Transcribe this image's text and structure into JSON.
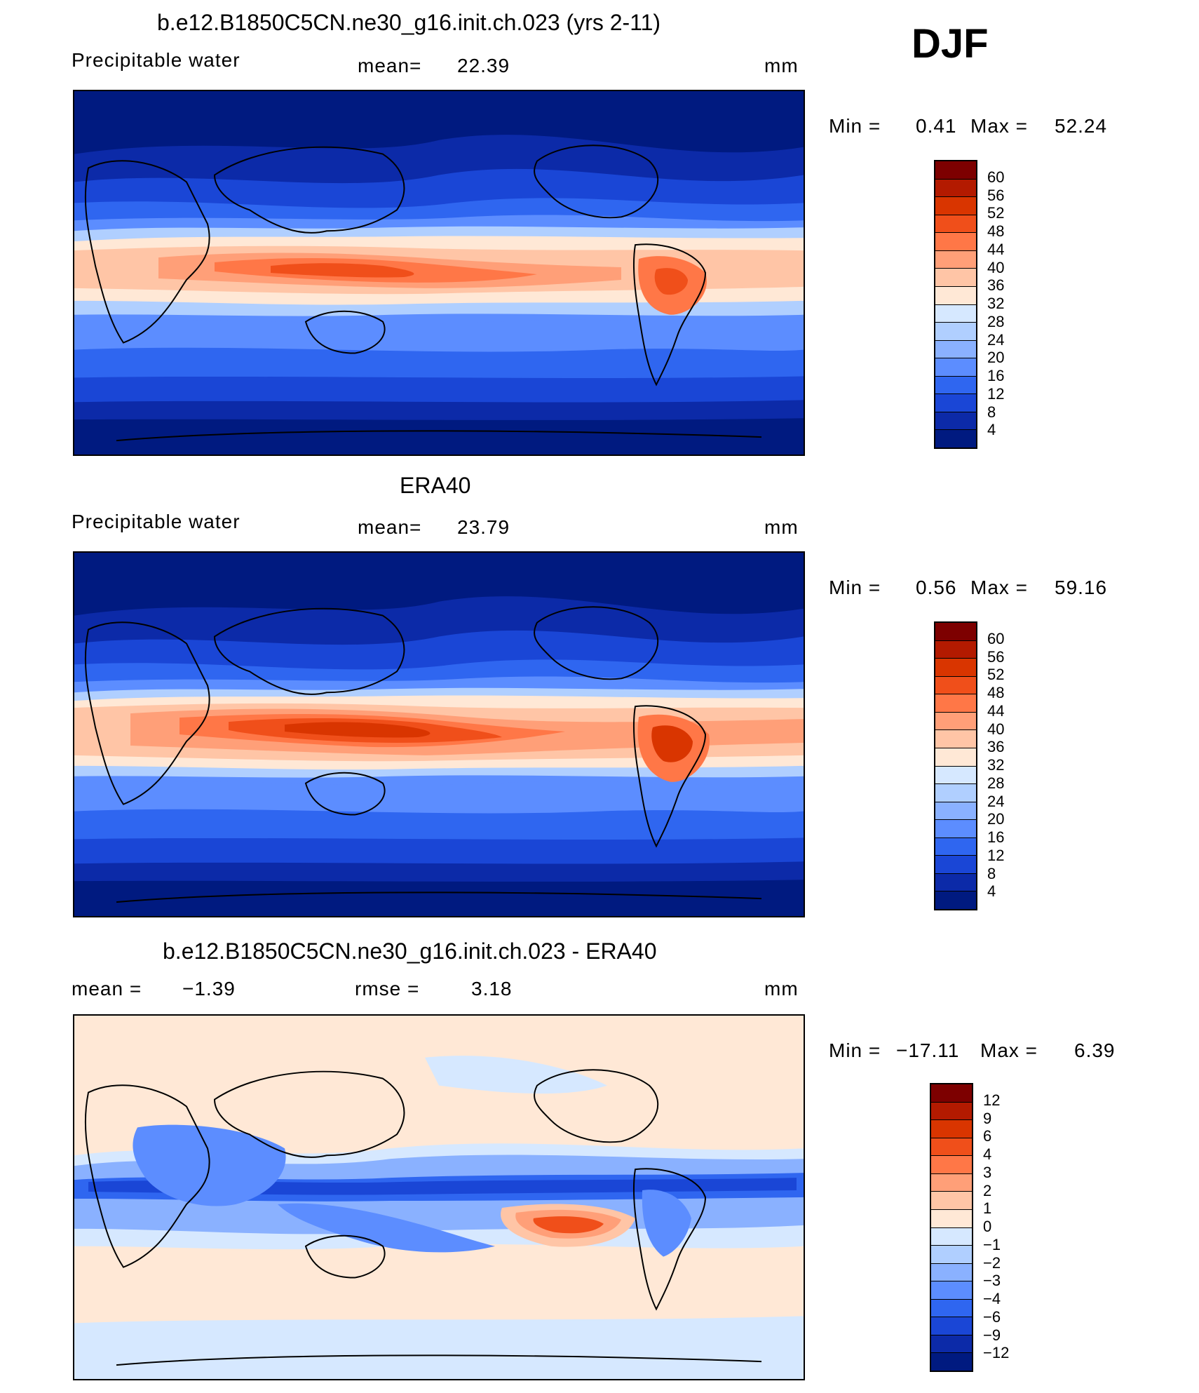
{
  "season_label": "DJF",
  "panels": [
    {
      "id": "model",
      "title": "b.e12.B1850C5CN.ne30_g16.init.ch.023 (yrs 2-11)",
      "variable": "Precipitable  water",
      "stat1_label": "mean=",
      "stat1_value": "22.39",
      "stat2_label": "",
      "stat2_value": "",
      "units": "mm",
      "min_label": "Min  =",
      "min_value": "0.41",
      "max_label": "Max  =",
      "max_value": "52.24",
      "levels": [
        "60",
        "56",
        "52",
        "48",
        "44",
        "40",
        "36",
        "32",
        "28",
        "24",
        "20",
        "16",
        "12",
        "8",
        "4"
      ],
      "colors": [
        "#7d0000",
        "#b31a00",
        "#d93500",
        "#f04f1a",
        "#ff7747",
        "#ff9f78",
        "#ffc5a6",
        "#ffe8d6",
        "#d6e8ff",
        "#b0cfff",
        "#8ab1ff",
        "#5c8dff",
        "#2f66f0",
        "#1a46d6",
        "#0c2aa8",
        "#001a80"
      ]
    },
    {
      "id": "obs",
      "title": "ERA40",
      "variable": "Precipitable  water",
      "stat1_label": "mean=",
      "stat1_value": "23.79",
      "stat2_label": "",
      "stat2_value": "",
      "units": "mm",
      "min_label": "Min  =",
      "min_value": "0.56",
      "max_label": "Max  =",
      "max_value": "59.16",
      "levels": [
        "60",
        "56",
        "52",
        "48",
        "44",
        "40",
        "36",
        "32",
        "28",
        "24",
        "20",
        "16",
        "12",
        "8",
        "4"
      ],
      "colors": [
        "#7d0000",
        "#b31a00",
        "#d93500",
        "#f04f1a",
        "#ff7747",
        "#ff9f78",
        "#ffc5a6",
        "#ffe8d6",
        "#d6e8ff",
        "#b0cfff",
        "#8ab1ff",
        "#5c8dff",
        "#2f66f0",
        "#1a46d6",
        "#0c2aa8",
        "#001a80"
      ]
    },
    {
      "id": "diff",
      "title": "b.e12.B1850C5CN.ne30_g16.init.ch.023 - ERA40",
      "variable": "",
      "stat1_label": "mean  =",
      "stat1_value": "−1.39",
      "stat2_label": "rmse  =",
      "stat2_value": "3.18",
      "units": "mm",
      "min_label": "Min  =",
      "min_value": "−17.11",
      "max_label": "Max  =",
      "max_value": "6.39",
      "levels": [
        "12",
        "9",
        "6",
        "4",
        "3",
        "2",
        "1",
        "0",
        "−1",
        "−2",
        "−3",
        "−4",
        "−6",
        "−9",
        "−12"
      ],
      "colors": [
        "#7d0000",
        "#b31a00",
        "#d93500",
        "#f04f1a",
        "#ff7747",
        "#ff9f78",
        "#ffc5a6",
        "#ffe8d6",
        "#d6e8ff",
        "#b0cfff",
        "#8ab1ff",
        "#5c8dff",
        "#2f66f0",
        "#1a46d6",
        "#0c2aa8",
        "#001a80"
      ]
    }
  ]
}
